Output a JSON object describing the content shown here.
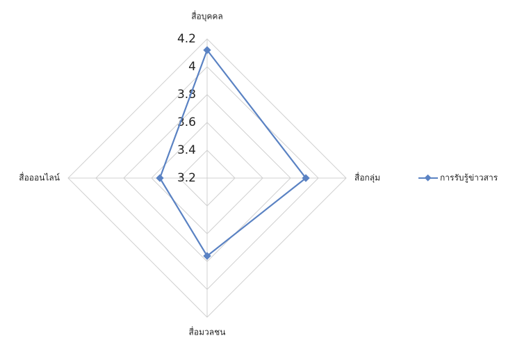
{
  "chart_data": {
    "type": "radar",
    "categories": [
      "สื่อบุคคล",
      "สื่อกลุ่ม",
      "สื่อมวลชน",
      "สื่อออนไลน์"
    ],
    "series": [
      {
        "name": "การรับรู้ข่าวสาร",
        "color": "#5a82c3",
        "values": [
          4.12,
          3.91,
          3.76,
          3.54
        ]
      }
    ],
    "ylim": [
      3.2,
      4.2
    ],
    "yticks": [
      3.2,
      3.4,
      3.6,
      3.8,
      4,
      4.2
    ],
    "grid": true,
    "legend": "right"
  }
}
